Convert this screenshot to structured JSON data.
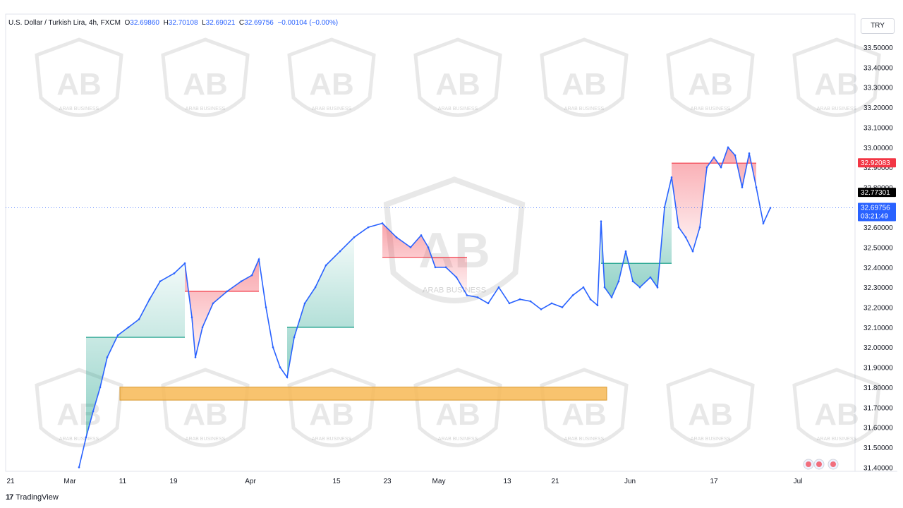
{
  "header": {
    "symbol": "U.S. Dollar / Turkish Lira, 4h, FXCM",
    "o_label": "O",
    "o_value": "32.69860",
    "h_label": "H",
    "h_value": "32.70108",
    "l_label": "L",
    "l_value": "32.69021",
    "c_label": "C",
    "c_value": "32.69756",
    "change": "−0.00104 (−0.00%)"
  },
  "currency_button": "TRY",
  "footer": {
    "logo": "17",
    "brand": "TradingView"
  },
  "watermark": {
    "text": "ARAB BUSINESS"
  },
  "colors": {
    "up": "#2962ff",
    "bear_cloud": "#f23645",
    "bull_cloud": "#089981",
    "zone": "#f7b955",
    "current_price_tag": "#2962ff",
    "level_high_tag": "#f23645",
    "level_mid_tag": "#000000"
  },
  "chart_data": {
    "type": "line",
    "title": "U.S. Dollar / Turkish Lira, 4h, FXCM",
    "ylim": [
      31.38,
      33.56
    ],
    "y_ticks": [
      "33.50000",
      "33.40000",
      "33.30000",
      "33.20000",
      "33.10000",
      "33.00000",
      "32.90000",
      "32.80000",
      "32.70000",
      "32.60000",
      "32.50000",
      "32.40000",
      "32.30000",
      "32.20000",
      "32.10000",
      "32.00000",
      "31.90000",
      "31.80000",
      "31.70000",
      "31.60000",
      "31.50000",
      "31.40000"
    ],
    "x_ticks": [
      "21",
      "Mar",
      "11",
      "19",
      "Apr",
      "15",
      "23",
      "May",
      "13",
      "21",
      "Jun",
      "17",
      "Jul"
    ],
    "series": [
      {
        "values": [
          [
            0,
            31.4
          ],
          [
            2,
            31.55
          ],
          [
            4,
            31.68
          ],
          [
            6,
            31.8
          ],
          [
            8,
            31.95
          ],
          [
            11,
            32.06
          ],
          [
            14,
            32.1
          ],
          [
            17,
            32.14
          ],
          [
            20,
            32.24
          ],
          [
            23,
            32.33
          ],
          [
            27,
            32.37
          ],
          [
            30,
            32.42
          ],
          [
            32,
            32.15
          ],
          [
            33,
            31.95
          ],
          [
            35,
            32.1
          ],
          [
            38,
            32.22
          ],
          [
            42,
            32.28
          ],
          [
            46,
            32.33
          ],
          [
            49,
            32.36
          ],
          [
            51,
            32.44
          ],
          [
            53,
            32.2
          ],
          [
            55,
            32.0
          ],
          [
            57,
            31.9
          ],
          [
            59,
            31.85
          ],
          [
            61,
            32.05
          ],
          [
            64,
            32.22
          ],
          [
            67,
            32.3
          ],
          [
            70,
            32.41
          ],
          [
            74,
            32.48
          ],
          [
            78,
            32.55
          ],
          [
            82,
            32.6
          ],
          [
            86,
            32.62
          ],
          [
            90,
            32.55
          ],
          [
            94,
            32.5
          ],
          [
            97,
            32.56
          ],
          [
            99,
            32.5
          ],
          [
            101,
            32.4
          ],
          [
            104,
            32.4
          ],
          [
            107,
            32.35
          ],
          [
            110,
            32.26
          ],
          [
            113,
            32.25
          ],
          [
            116,
            32.22
          ],
          [
            119,
            32.3
          ],
          [
            122,
            32.22
          ],
          [
            125,
            32.24
          ],
          [
            128,
            32.23
          ],
          [
            131,
            32.19
          ],
          [
            134,
            32.22
          ],
          [
            137,
            32.2
          ],
          [
            140,
            32.26
          ],
          [
            143,
            32.3
          ],
          [
            145,
            32.24
          ],
          [
            147,
            32.21
          ],
          [
            148,
            32.63
          ],
          [
            149,
            32.3
          ],
          [
            151,
            32.25
          ],
          [
            153,
            32.33
          ],
          [
            155,
            32.48
          ],
          [
            157,
            32.33
          ],
          [
            159,
            32.3
          ],
          [
            162,
            32.35
          ],
          [
            164,
            32.3
          ],
          [
            166,
            32.7
          ],
          [
            168,
            32.85
          ],
          [
            170,
            32.6
          ],
          [
            172,
            32.55
          ],
          [
            174,
            32.48
          ],
          [
            176,
            32.6
          ],
          [
            178,
            32.9
          ],
          [
            180,
            32.95
          ],
          [
            182,
            32.9
          ],
          [
            184,
            33.0
          ],
          [
            186,
            32.96
          ],
          [
            188,
            32.8
          ],
          [
            190,
            32.97
          ],
          [
            192,
            32.8
          ],
          [
            194,
            32.62
          ],
          [
            196,
            32.69756
          ]
        ]
      }
    ],
    "levels": [
      {
        "value": 32.92083,
        "label": "32.92083"
      },
      {
        "value": 32.77301,
        "label": "32.77301"
      },
      {
        "value": 32.69756,
        "label": "32.69756",
        "countdown": "03:21:49"
      }
    ],
    "zone": {
      "low": 31.75,
      "high": 31.78
    }
  }
}
